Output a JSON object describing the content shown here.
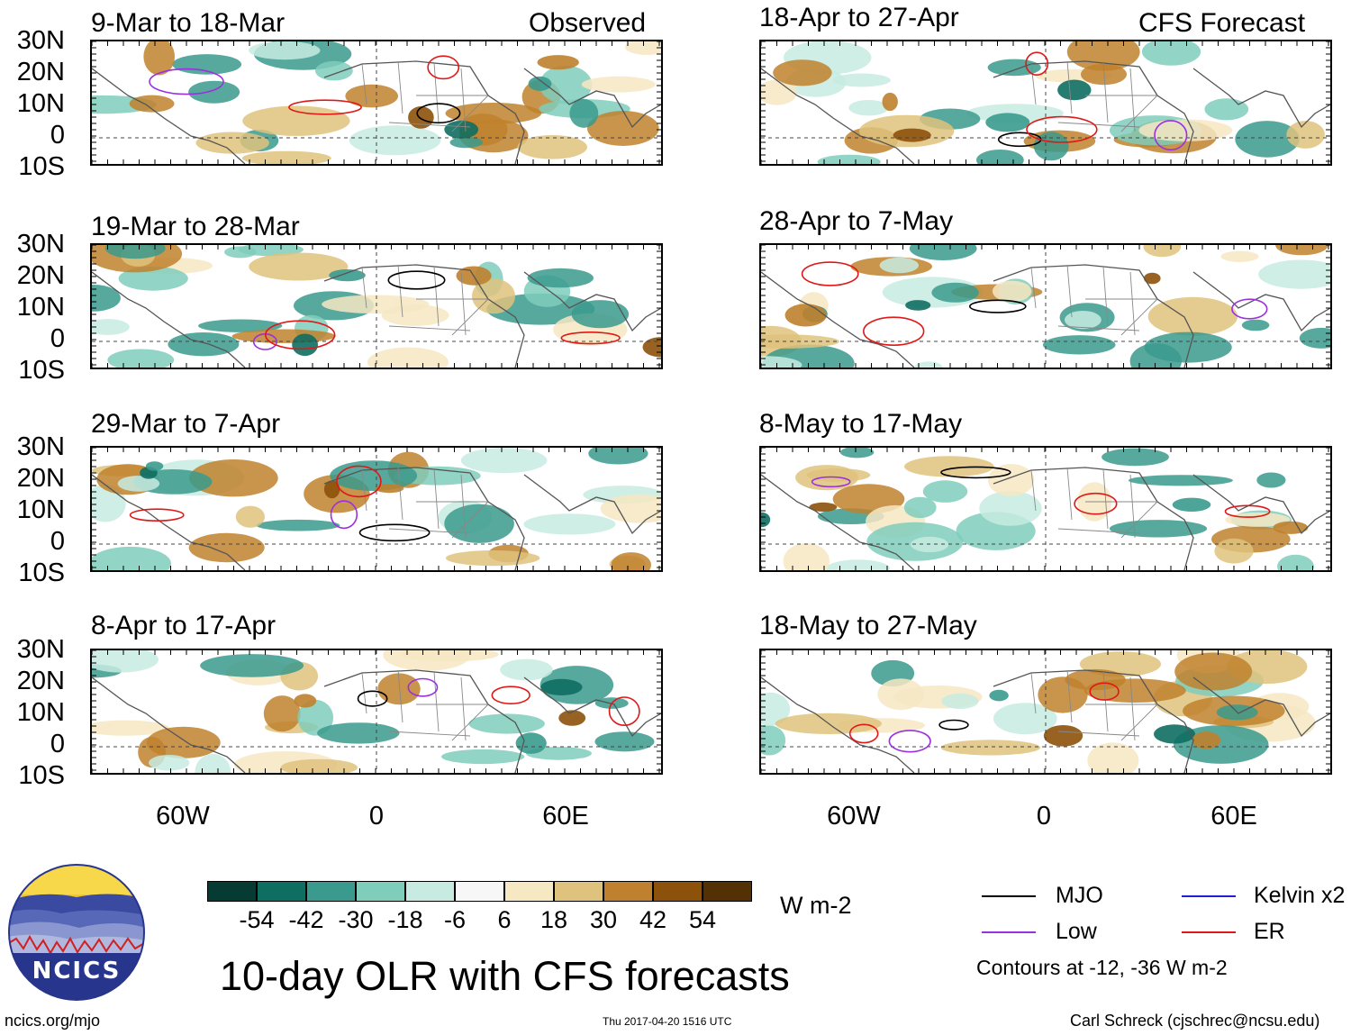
{
  "observed_label": "Observed",
  "forecast_label": "CFS Forecast",
  "panels_left": [
    {
      "title": "9-Mar to 18-Mar"
    },
    {
      "title": "19-Mar to 28-Mar"
    },
    {
      "title": "29-Mar to 7-Apr"
    },
    {
      "title": "8-Apr to 17-Apr"
    }
  ],
  "panels_right": [
    {
      "title": "18-Apr to 27-Apr"
    },
    {
      "title": "28-Apr to 7-May"
    },
    {
      "title": "8-May to 17-May"
    },
    {
      "title": "18-May to 27-May"
    }
  ],
  "lat_labels": [
    "30N",
    "20N",
    "10N",
    "0",
    "10S"
  ],
  "lon_labels": [
    "60W",
    "0",
    "60E"
  ],
  "colorbar": {
    "unit": "W m-2",
    "colors": [
      "#053b32",
      "#0e6e61",
      "#3a9a8d",
      "#7fcdbb",
      "#c7ebe0",
      "#f7f7f7",
      "#f6e8c3",
      "#dfc27d",
      "#bf812d",
      "#8c510a",
      "#543005"
    ],
    "labels": [
      "-54",
      "-42",
      "-30",
      "-18",
      "-6",
      "6",
      "18",
      "30",
      "42",
      "54"
    ]
  },
  "title": "10-day OLR with CFS forecasts",
  "legend": {
    "items": [
      {
        "label": "MJO",
        "color": "#000000"
      },
      {
        "label": "Kelvin x2",
        "color": "#2020d0"
      },
      {
        "label": "Low",
        "color": "#9a30e0"
      },
      {
        "label": "ER",
        "color": "#e01818"
      }
    ],
    "note": "Contours at -12, -36 W m-2"
  },
  "logo_text": "NCICS",
  "url": "ncics.org/mjo",
  "timestamp": "Thu 2017-04-20 1516 UTC",
  "credit": "Carl Schreck (cjschrec@ncsu.edu)"
}
